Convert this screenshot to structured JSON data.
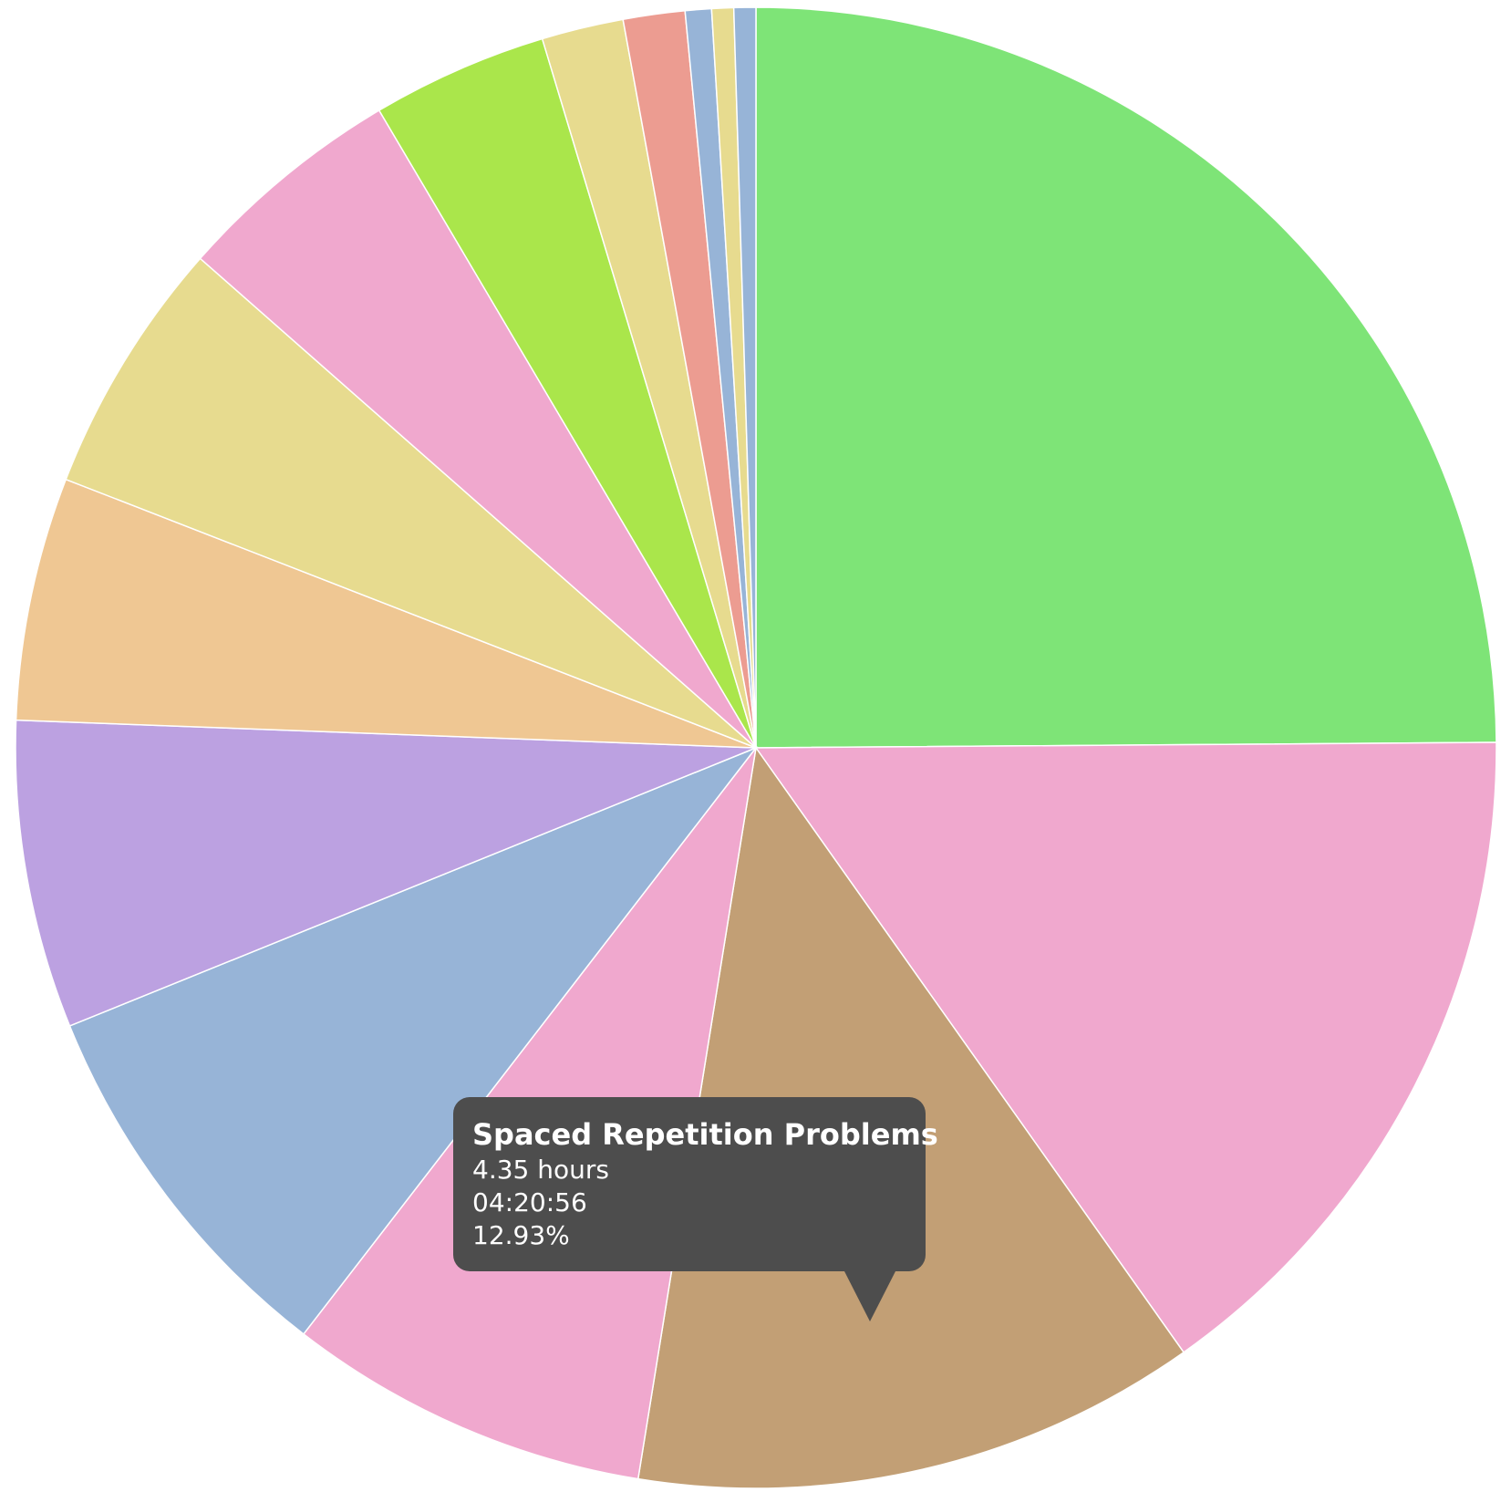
{
  "chart_data": {
    "type": "pie",
    "start_angle_deg": 0,
    "direction": "clockwise",
    "slices": [
      {
        "value": 26.06,
        "color": "#7ee477"
      },
      {
        "value": 16.04,
        "color": "#f0a8ce"
      },
      {
        "value": 12.93,
        "color": "#c29f75",
        "label": "Spaced Repetition Problems"
      },
      {
        "value": 8.29,
        "color": "#f0a8ce"
      },
      {
        "value": 8.81,
        "color": "#97b4d7"
      },
      {
        "value": 7.04,
        "color": "#bca1e1"
      },
      {
        "value": 5.56,
        "color": "#efc793"
      },
      {
        "value": 5.85,
        "color": "#e7db8f"
      },
      {
        "value": 5.25,
        "color": "#f0a8ce"
      },
      {
        "value": 4.02,
        "color": "#aae64b"
      },
      {
        "value": 1.87,
        "color": "#e7db8f"
      },
      {
        "value": 1.41,
        "color": "#ec9c91"
      },
      {
        "value": 0.6,
        "color": "#97b4d7"
      },
      {
        "value": 0.5,
        "color": "#e7db8f"
      },
      {
        "value": 0.5,
        "color": "#97b4d7"
      }
    ]
  },
  "tooltip": {
    "title": "Spaced Repetition Problems",
    "hours": "4.35 hours",
    "duration": "04:20:56",
    "percent": "12.93%"
  }
}
